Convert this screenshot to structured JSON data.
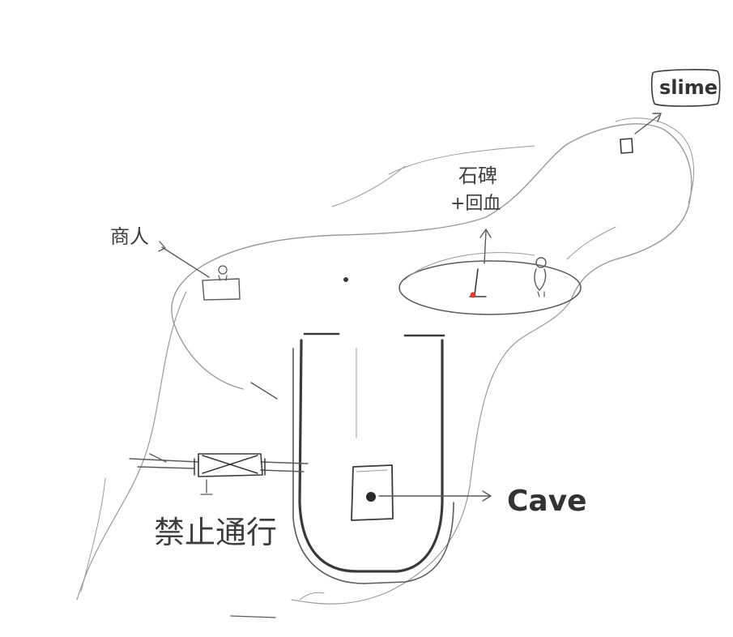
{
  "labels": {
    "slime": "slime",
    "cave": "Cave",
    "merchant": "商人",
    "stone_tablet_line1": "石碑",
    "stone_tablet_line2": "+回血",
    "barrier_gate": "禁止通行"
  },
  "colors": {
    "pencil": "#5a5a5a",
    "red_mark": "#d04030"
  }
}
